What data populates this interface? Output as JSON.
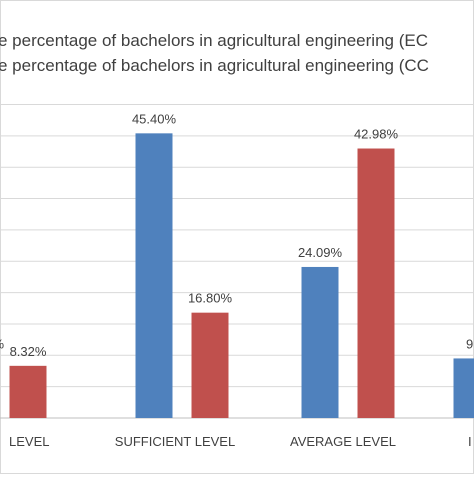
{
  "chart_data": {
    "type": "bar",
    "legend_position": "top",
    "grid": true,
    "ylim": [
      0,
      50
    ],
    "categories": [
      "LEVEL",
      "SUFFICIENT LEVEL",
      "AVERAGE LEVEL",
      "I"
    ],
    "series": [
      {
        "name": "e percentage of bachelors in agricultural engineering (EC",
        "color": "#4f81bd",
        "values": [
          null,
          45.4,
          24.09,
          9.5
        ],
        "labels": [
          "%",
          "45.40%",
          "24.09%",
          "9"
        ]
      },
      {
        "name": "e percentage of bachelors in agricultural engineering (CC",
        "color": "#c0504d",
        "values": [
          8.32,
          16.8,
          42.98,
          null
        ],
        "labels": [
          "8.32%",
          "16.80%",
          "42.98%",
          ""
        ]
      }
    ]
  }
}
